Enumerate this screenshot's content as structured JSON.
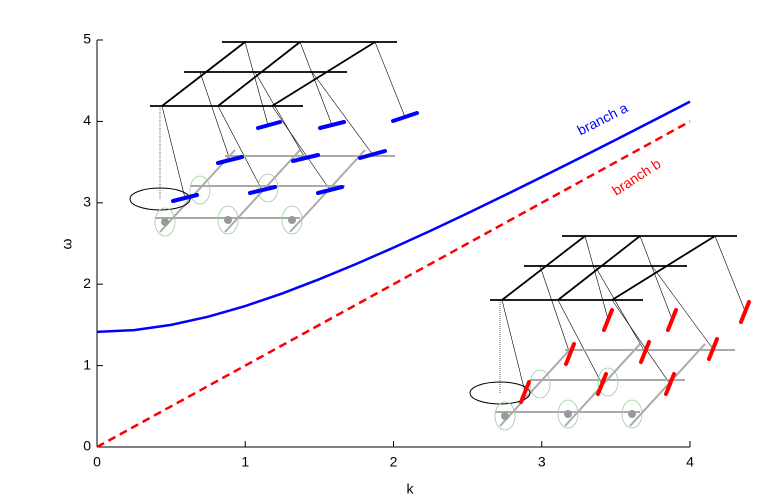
{
  "chart_data": {
    "type": "line",
    "x": [
      0,
      0.25,
      0.5,
      0.75,
      1,
      1.25,
      1.5,
      1.75,
      2,
      2.25,
      2.5,
      2.75,
      3,
      3.25,
      3.5,
      3.75,
      4
    ],
    "series": [
      {
        "name": "branch a",
        "color": "#0000ff",
        "dash": false,
        "values": [
          1.414,
          1.436,
          1.5,
          1.601,
          1.732,
          1.887,
          2.062,
          2.25,
          2.449,
          2.657,
          2.872,
          3.092,
          3.317,
          3.544,
          3.775,
          4.008,
          4.243
        ]
      },
      {
        "name": "branch b",
        "color": "#ff0000",
        "dash": true,
        "values": [
          0,
          0.25,
          0.5,
          0.75,
          1,
          1.25,
          1.5,
          1.75,
          2,
          2.25,
          2.5,
          2.75,
          3,
          3.25,
          3.5,
          3.75,
          4
        ]
      }
    ],
    "xlabel": "k",
    "ylabel": "ω",
    "xlim": [
      0,
      4
    ],
    "ylim": [
      0,
      5
    ],
    "xticks": [
      0,
      1,
      2,
      3,
      4
    ],
    "yticks": [
      0,
      1,
      2,
      3,
      4,
      5
    ]
  }
}
